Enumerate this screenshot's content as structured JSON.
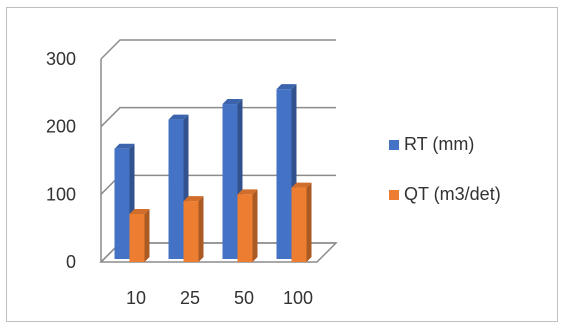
{
  "chart_data": {
    "type": "bar",
    "title": "",
    "xlabel": "",
    "ylabel": "",
    "categories": [
      "10",
      "25",
      "50",
      "100"
    ],
    "series": [
      {
        "name": "RT (mm)",
        "values": [
          163,
          206,
          229,
          251
        ],
        "color": "#4472C4"
      },
      {
        "name": "QT (m3/det)",
        "values": [
          71,
          90,
          100,
          110
        ],
        "color": "#ED7D31"
      }
    ],
    "ylim": [
      0,
      300
    ],
    "yticks": [
      "0",
      "100",
      "200",
      "300"
    ],
    "grid": true,
    "style": "3d-clustered-column",
    "legend_position": "right"
  }
}
